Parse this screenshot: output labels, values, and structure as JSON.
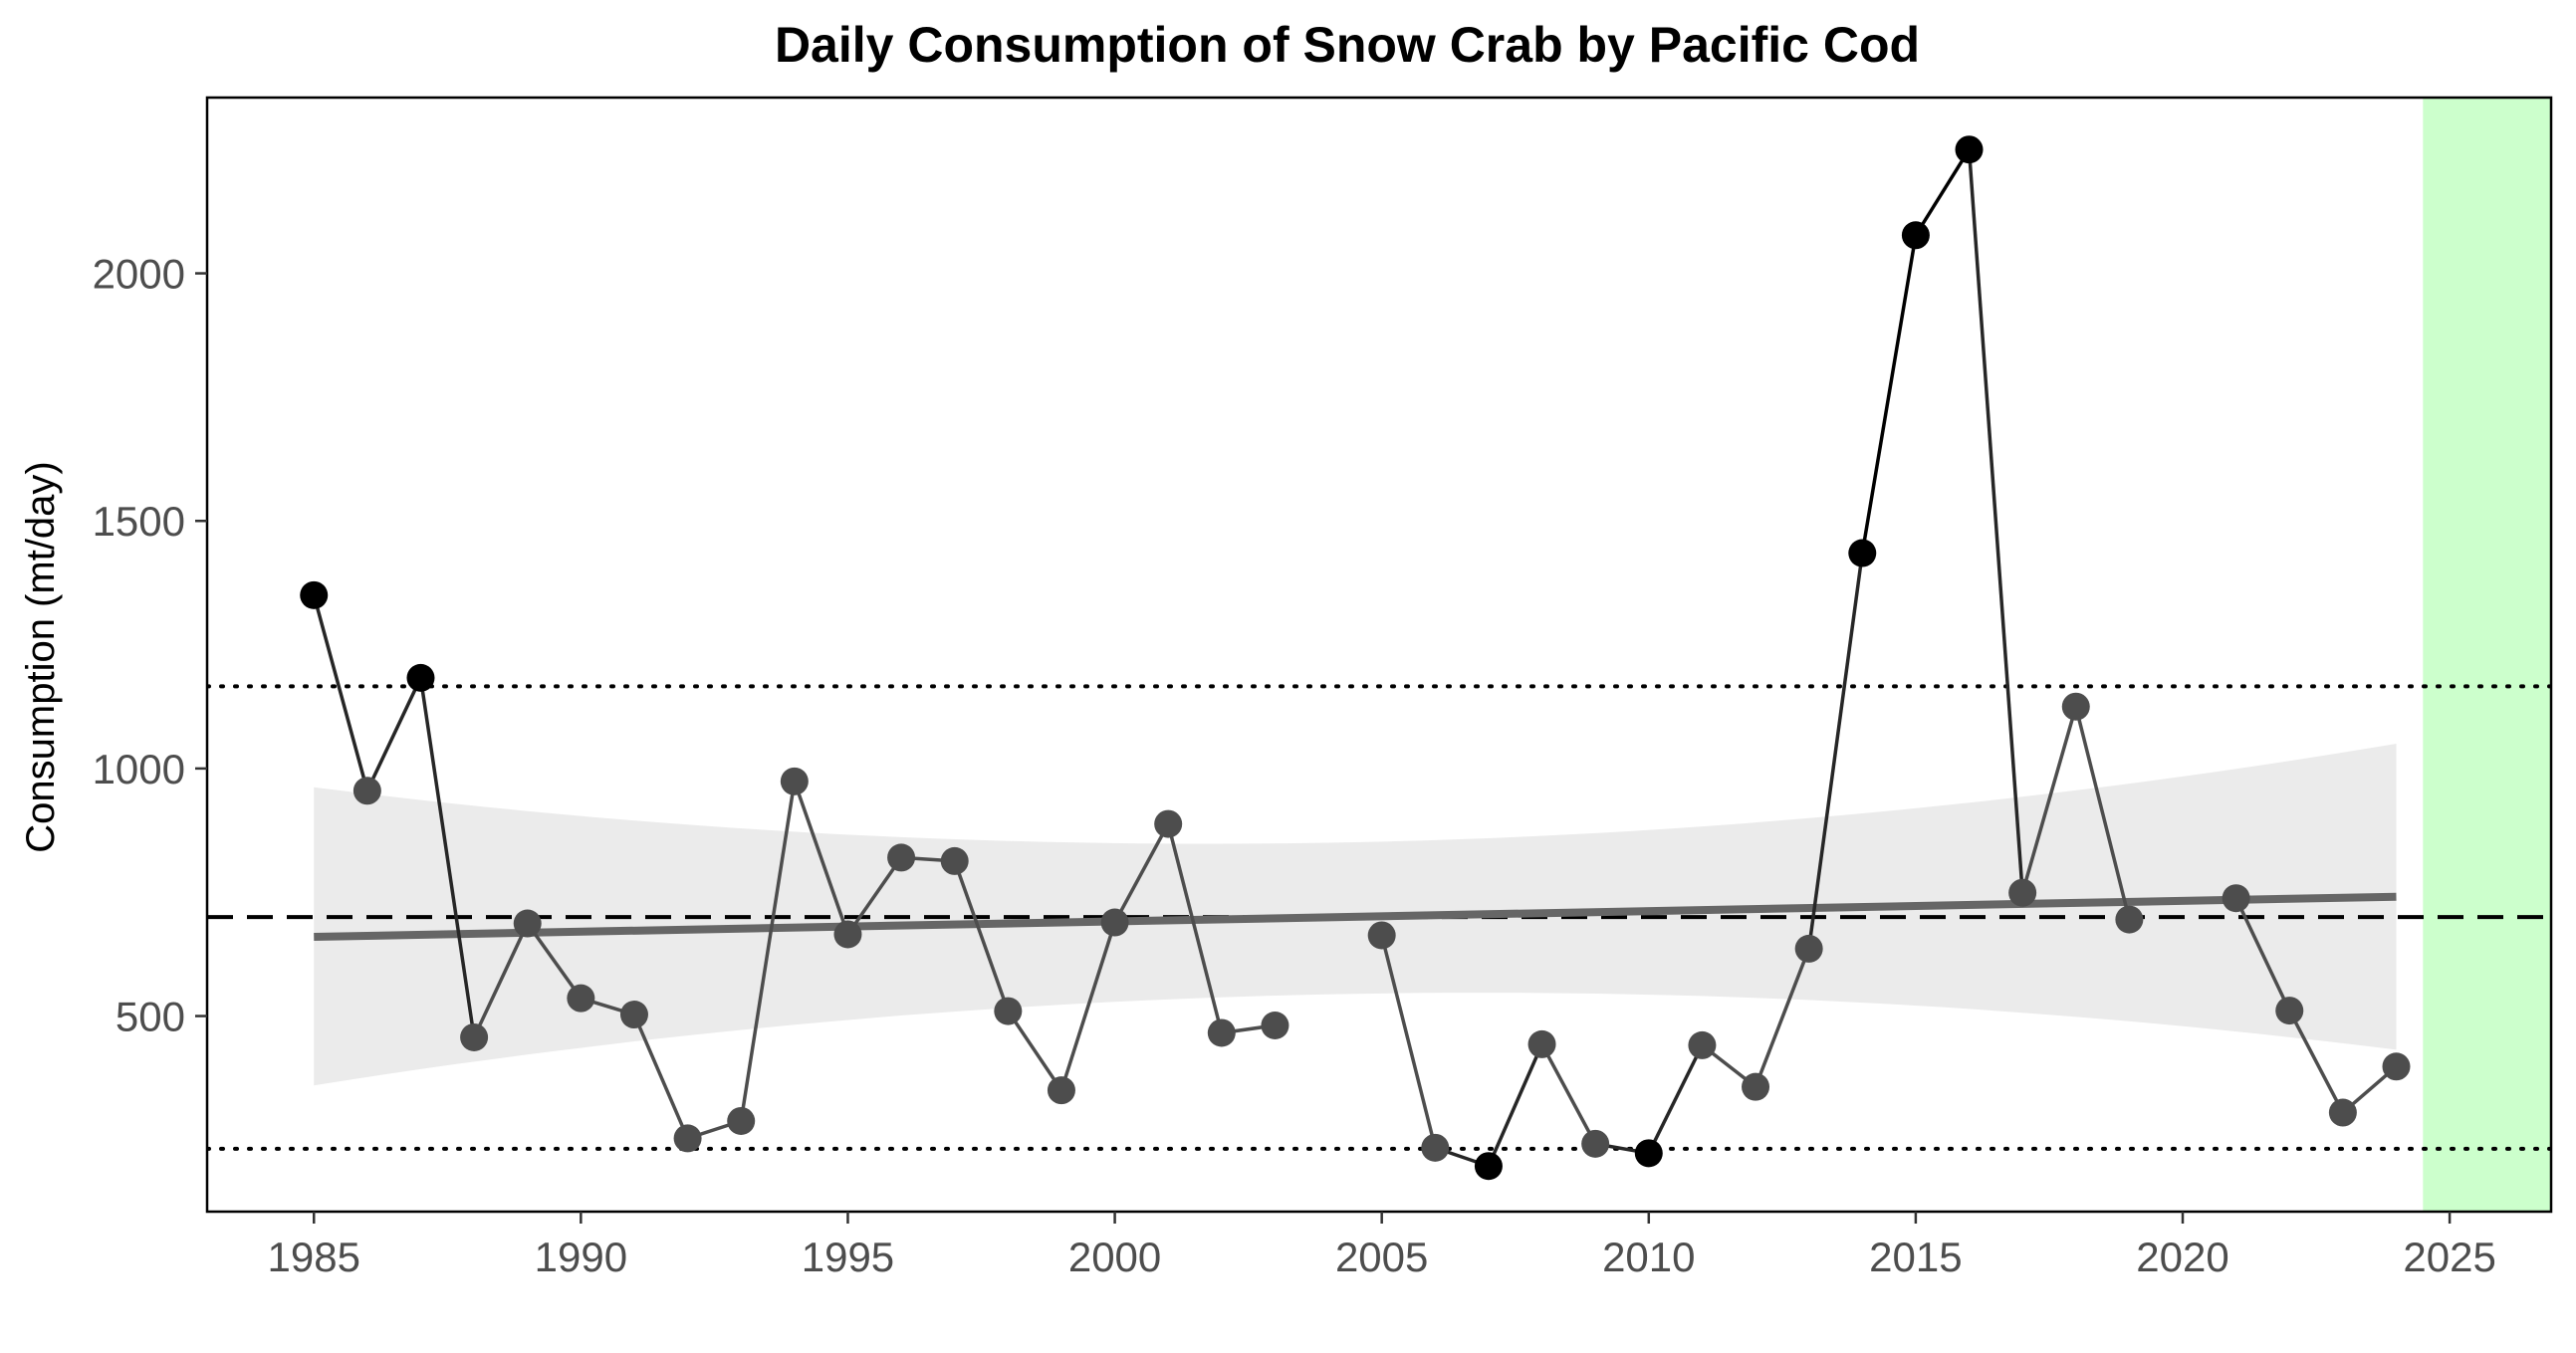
{
  "chart_data": {
    "type": "line",
    "title": "Daily Consumption of Snow Crab by Pacific Cod",
    "xlabel": "",
    "ylabel": "Consumption (mt/day)",
    "xlim": [
      1983,
      2026.9
    ],
    "ylim": [
      105,
      2355
    ],
    "x_ticks": [
      1985,
      1990,
      1995,
      2000,
      2005,
      2010,
      2015,
      2020,
      2025
    ],
    "y_ticks": [
      500,
      1000,
      1500,
      2000
    ],
    "grid": false,
    "legend": "none",
    "series": [
      {
        "points": [
          {
            "x": 1985,
            "y": 1350
          },
          {
            "x": 1986,
            "y": 955
          },
          {
            "x": 1987,
            "y": 1183
          },
          {
            "x": 1988,
            "y": 457
          },
          {
            "x": 1989,
            "y": 687
          },
          {
            "x": 1990,
            "y": 536
          },
          {
            "x": 1991,
            "y": 503
          },
          {
            "x": 1992,
            "y": 253
          },
          {
            "x": 1993,
            "y": 288
          },
          {
            "x": 1994,
            "y": 974
          },
          {
            "x": 1995,
            "y": 665
          },
          {
            "x": 1996,
            "y": 820
          },
          {
            "x": 1997,
            "y": 813
          },
          {
            "x": 1998,
            "y": 510
          },
          {
            "x": 1999,
            "y": 350
          },
          {
            "x": 2000,
            "y": 689
          },
          {
            "x": 2001,
            "y": 888
          },
          {
            "x": 2002,
            "y": 466
          },
          {
            "x": 2003,
            "y": 481
          },
          {
            "x": 2004,
            "y": null
          },
          {
            "x": 2005,
            "y": 663
          },
          {
            "x": 2006,
            "y": 234
          },
          {
            "x": 2007,
            "y": 197
          },
          {
            "x": 2008,
            "y": 443
          },
          {
            "x": 2009,
            "y": 242
          },
          {
            "x": 2010,
            "y": 223
          },
          {
            "x": 2011,
            "y": 441
          },
          {
            "x": 2012,
            "y": 357
          },
          {
            "x": 2013,
            "y": 636
          },
          {
            "x": 2014,
            "y": 1435
          },
          {
            "x": 2015,
            "y": 2077
          },
          {
            "x": 2016,
            "y": 2250
          },
          {
            "x": 2017,
            "y": 749
          },
          {
            "x": 2018,
            "y": 1125
          },
          {
            "x": 2019,
            "y": 695
          },
          {
            "x": 2020,
            "y": null
          },
          {
            "x": 2021,
            "y": 738
          },
          {
            "x": 2022,
            "y": 511
          },
          {
            "x": 2023,
            "y": 305
          },
          {
            "x": 2024,
            "y": 398
          }
        ],
        "outside_color": "#000000",
        "inside_color": "#4d4d4d"
      }
    ],
    "reference_lines": {
      "mean": 700,
      "upper_sd": 1166,
      "lower_sd": 232
    },
    "trend": {
      "x_start": 1985,
      "x_end": 2024,
      "y_start": 660,
      "y_end": 741,
      "band_start": [
        360,
        962
      ],
      "band_mid_x": 2004.5,
      "band_mid": [
        545,
        851
      ],
      "band_end": [
        432,
        1050
      ]
    },
    "highlight": {
      "x_start": 2024.5,
      "x_end": 2026.9
    },
    "colors": {
      "highlight": "#ccffcc",
      "band": "#ebebeb",
      "trend": "#666666",
      "axis": "#000000",
      "tick_label": "#4d4d4d"
    }
  }
}
